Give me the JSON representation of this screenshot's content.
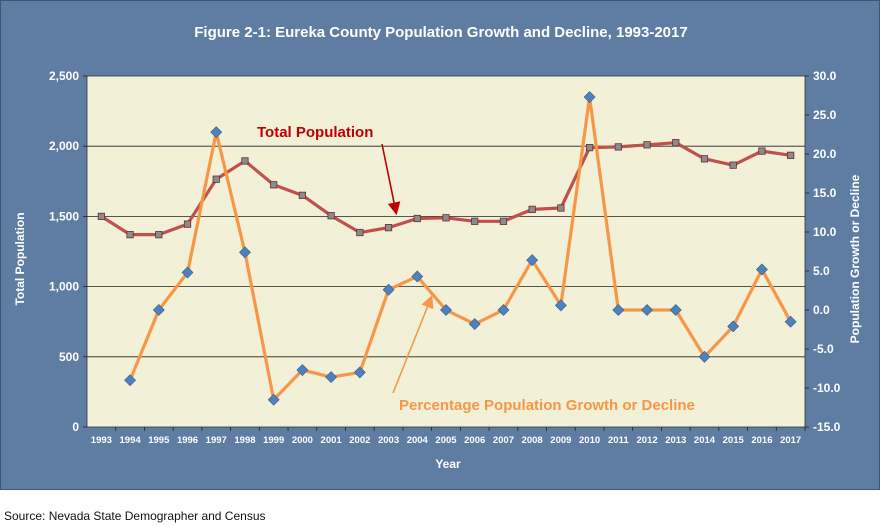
{
  "chart_data": {
    "type": "line",
    "title": "Figure 2-1: Eureka County Population Growth and Decline, 1993-2017",
    "xlabel": "Year",
    "ylabel_left": "Total Population",
    "ylabel_right": "Population Growth or Decline",
    "x": [
      "1993",
      "1994",
      "1995",
      "1996",
      "1997",
      "1998",
      "1999",
      "2000",
      "2001",
      "2002",
      "2003",
      "2004",
      "2005",
      "2006",
      "2007",
      "2008",
      "2009",
      "2010",
      "2011",
      "2012",
      "2013",
      "2014",
      "2015",
      "2016",
      "2017"
    ],
    "ylim_left": [
      0,
      2500
    ],
    "yticks_left": [
      "0",
      "500",
      "1,000",
      "1,500",
      "2,000",
      "2,500"
    ],
    "ylim_right": [
      -15,
      30
    ],
    "yticks_right": [
      "-15.0",
      "-10.0",
      "-5.0",
      "0.0",
      "5.0",
      "10.0",
      "15.0",
      "20.0",
      "25.0",
      "30.0"
    ],
    "grid": "horizontal",
    "series": [
      {
        "name": "Total Population",
        "axis": "left",
        "color": "#c0504d",
        "marker": "square",
        "values": [
          1500,
          1370,
          1370,
          1445,
          1765,
          1895,
          1725,
          1650,
          1505,
          1385,
          1420,
          1485,
          1490,
          1465,
          1465,
          1550,
          1560,
          1990,
          1995,
          2010,
          2025,
          1910,
          1865,
          1965,
          1935
        ]
      },
      {
        "name": "Percentage Population Growth or Decline",
        "axis": "right",
        "color": "#f79646",
        "marker_color": "#4f81bd",
        "marker": "diamond",
        "values": [
          null,
          -9.0,
          0.0,
          4.8,
          22.8,
          7.4,
          -11.5,
          -7.7,
          -8.6,
          -8.0,
          2.6,
          4.3,
          0.0,
          -1.8,
          0.0,
          6.4,
          0.6,
          27.3,
          0.0,
          0.0,
          0.0,
          -6.0,
          -2.1,
          5.2,
          -1.5
        ]
      }
    ],
    "annotations": [
      {
        "text": "Total Population",
        "color": "#c00000"
      },
      {
        "text": "Percentage Population Growth or Decline",
        "color": "#f79646"
      }
    ],
    "source": "Source: Nevada State Demographer and Census"
  }
}
